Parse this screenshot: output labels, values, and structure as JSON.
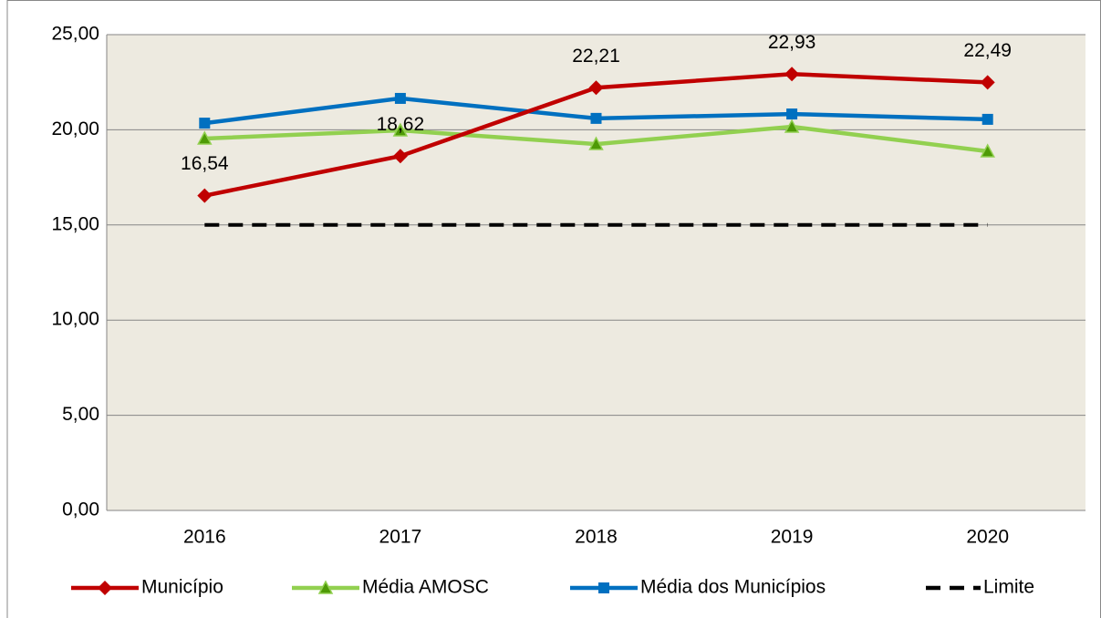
{
  "chart_data": {
    "type": "line",
    "categories": [
      "2016",
      "2017",
      "2018",
      "2019",
      "2020"
    ],
    "series": [
      {
        "name": "Município",
        "color": "#c00000",
        "marker": "diamond",
        "line_style": "solid",
        "values": [
          16.54,
          18.62,
          22.21,
          22.93,
          22.49
        ],
        "value_labels": [
          "16,54",
          "18,62",
          "22,21",
          "22,93",
          "22,49"
        ]
      },
      {
        "name": "Média AMOSC",
        "color": "#92d050",
        "marker": "triangle",
        "line_style": "solid",
        "values": [
          19.54,
          19.97,
          19.25,
          20.16,
          18.87
        ]
      },
      {
        "name": "Média dos Municípios",
        "color": "#0070c0",
        "marker": "square",
        "line_style": "solid",
        "values": [
          20.35,
          21.65,
          20.6,
          20.83,
          20.55
        ]
      },
      {
        "name": "Limite",
        "color": "#000000",
        "marker": null,
        "line_style": "dashed",
        "values": [
          15,
          15,
          15,
          15,
          15
        ]
      }
    ],
    "ylim": [
      0,
      25
    ],
    "yticks": [
      {
        "value": 0,
        "label": "0,00"
      },
      {
        "value": 5,
        "label": "5,00"
      },
      {
        "value": 10,
        "label": "10,00"
      },
      {
        "value": 15,
        "label": "15,00"
      },
      {
        "value": 20,
        "label": "20,00"
      },
      {
        "value": 25,
        "label": "25,00"
      }
    ],
    "grid": true,
    "legend": "bottom",
    "plot_background": "#edeae0"
  }
}
